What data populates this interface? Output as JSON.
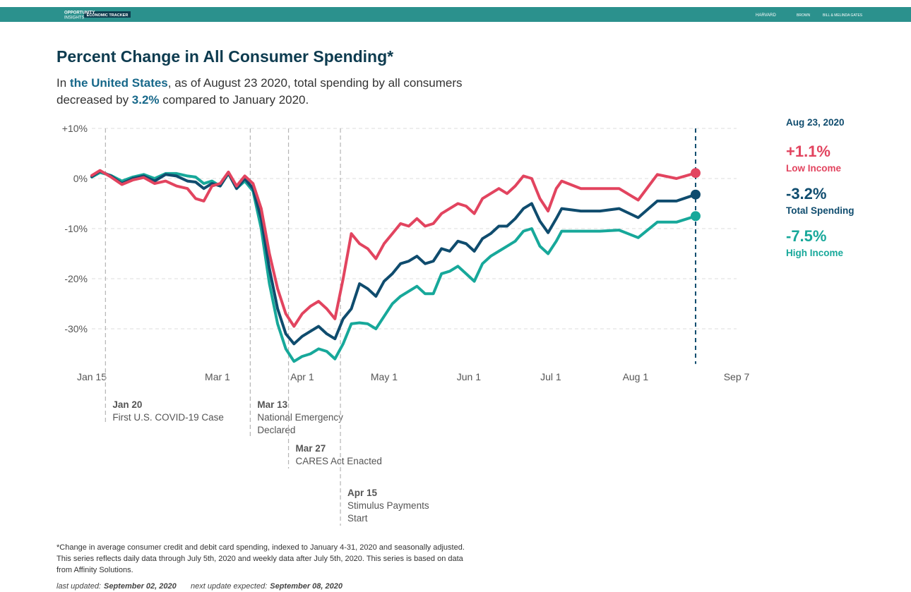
{
  "header": {
    "logo": [
      "OPPORTUNITY",
      "INSIGHTS"
    ],
    "product": "ECONOMIC TRACKER",
    "partners": [
      "HARVARD",
      "BROWN",
      "BILL & MELINDA GATES"
    ]
  },
  "chart_data": {
    "type": "line",
    "title": "Percent Change in All Consumer Spending*",
    "subtitle": [
      [
        {
          "text": "In "
        },
        {
          "text": "the United States",
          "bold": true
        },
        {
          "text": ", as of August 23 2020, total spending by all consumers"
        }
      ],
      [
        {
          "text": "decreased by "
        },
        {
          "text": "3.2%",
          "bold": true
        },
        {
          "text": " compared to January 2020."
        }
      ]
    ],
    "x": [
      "2020-01-15",
      "2020-01-18",
      "2020-01-22",
      "2020-01-26",
      "2020-01-30",
      "2020-02-03",
      "2020-02-07",
      "2020-02-11",
      "2020-02-15",
      "2020-02-19",
      "2020-02-22",
      "2020-02-25",
      "2020-02-28",
      "2020-03-02",
      "2020-03-05",
      "2020-03-08",
      "2020-03-11",
      "2020-03-14",
      "2020-03-17",
      "2020-03-20",
      "2020-03-23",
      "2020-03-26",
      "2020-03-29",
      "2020-04-01",
      "2020-04-04",
      "2020-04-07",
      "2020-04-10",
      "2020-04-13",
      "2020-04-16",
      "2020-04-19",
      "2020-04-22",
      "2020-04-25",
      "2020-04-28",
      "2020-05-01",
      "2020-05-04",
      "2020-05-07",
      "2020-05-10",
      "2020-05-13",
      "2020-05-16",
      "2020-05-19",
      "2020-05-22",
      "2020-05-25",
      "2020-05-28",
      "2020-05-31",
      "2020-06-03",
      "2020-06-06",
      "2020-06-09",
      "2020-06-12",
      "2020-06-15",
      "2020-06-18",
      "2020-06-21",
      "2020-06-24",
      "2020-06-27",
      "2020-06-30",
      "2020-07-03",
      "2020-07-05",
      "2020-07-12",
      "2020-07-19",
      "2020-07-26",
      "2020-08-02",
      "2020-08-09",
      "2020-08-16",
      "2020-08-23"
    ],
    "series": [
      {
        "name": "Low Income",
        "color": "#e2445f",
        "last_label": "+1.1%",
        "values": [
          0.6,
          1.6,
          0.3,
          -1.2,
          -0.3,
          0.2,
          -1,
          -0.5,
          -1.5,
          -2,
          -4,
          -4.5,
          -1.5,
          -1,
          1.3,
          -1.5,
          0.5,
          -1,
          -6,
          -15,
          -22,
          -27,
          -29.5,
          -27,
          -25.5,
          -24.5,
          -26,
          -28,
          -20,
          -11,
          -13,
          -14,
          -16,
          -13,
          -11,
          -9,
          -9.5,
          -8,
          -9.5,
          -9,
          -7,
          -6,
          -5,
          -5.5,
          -7,
          -4,
          -3,
          -2,
          -3,
          -1.5,
          0.5,
          0,
          -4,
          -6.5,
          -2,
          -0.5,
          -2,
          -2,
          -2,
          -4.3,
          0.8,
          0,
          1.1
        ]
      },
      {
        "name": "Total Spending",
        "color": "#0f4c6e",
        "last_label": "-3.2%",
        "values": [
          0.4,
          1.5,
          0.5,
          -1,
          0,
          0.5,
          -0.5,
          0.8,
          0.5,
          -0.5,
          -0.7,
          -2,
          -1,
          -1.5,
          1.1,
          -2,
          0,
          -2,
          -8,
          -18,
          -26,
          -31,
          -33,
          -31.5,
          -30.5,
          -29.5,
          -31,
          -32,
          -28,
          -26,
          -21,
          -22,
          -23.5,
          -20.5,
          -19,
          -17,
          -16.5,
          -15.5,
          -17,
          -16.5,
          -14,
          -14.5,
          -12.5,
          -13,
          -14.5,
          -12,
          -11,
          -9.5,
          -9.5,
          -8,
          -6,
          -5,
          -8.5,
          -10.8,
          -8,
          -6,
          -6.5,
          -6.5,
          -6,
          -7.8,
          -4.5,
          -4.5,
          -3.2
        ]
      },
      {
        "name": "High Income",
        "color": "#17a89a",
        "last_label": "-7.5%",
        "values": [
          0.3,
          1.2,
          0.6,
          -0.5,
          0.3,
          0.8,
          0,
          1,
          1,
          0.5,
          0.3,
          -1,
          -0.5,
          -1.5,
          1,
          -2,
          -0.5,
          -2.5,
          -10,
          -21,
          -29,
          -34,
          -36.5,
          -35.5,
          -35,
          -34,
          -34.5,
          -36,
          -33,
          -29,
          -28.8,
          -29,
          -30,
          -27.5,
          -25,
          -23.5,
          -22.5,
          -21.5,
          -23,
          -23,
          -19,
          -18.5,
          -17.5,
          -19,
          -20.5,
          -17,
          -15.5,
          -14.5,
          -13.5,
          -12.5,
          -10.5,
          -10,
          -13.5,
          -15,
          -12.5,
          -10.5,
          -10.5,
          -10.5,
          -10.3,
          -11.8,
          -8.7,
          -8.7,
          -7.5
        ]
      }
    ],
    "xlim": [
      "2020-01-15",
      "2020-09-07"
    ],
    "xticks": [
      {
        "value": "2020-01-15",
        "label": "Jan 15"
      },
      {
        "value": "2020-03-01",
        "label": "Mar 1"
      },
      {
        "value": "2020-04-01",
        "label": "Apr 1"
      },
      {
        "value": "2020-05-01",
        "label": "May 1"
      },
      {
        "value": "2020-06-01",
        "label": "Jun 1"
      },
      {
        "value": "2020-07-01",
        "label": "Jul 1"
      },
      {
        "value": "2020-08-01",
        "label": "Aug 1"
      },
      {
        "value": "2020-09-07",
        "label": "Sep 7"
      }
    ],
    "ylim": [
      -37,
      10
    ],
    "yticks": [
      {
        "value": 10,
        "label": "+10%"
      },
      {
        "value": 0,
        "label": "0%"
      },
      {
        "value": -10,
        "label": "-10%"
      },
      {
        "value": -20,
        "label": "-20%"
      },
      {
        "value": -30,
        "label": "-30%"
      }
    ],
    "grid": true,
    "marker": {
      "date": "2020-08-23",
      "label": "Aug 23, 2020",
      "color": "#0f4c6e"
    },
    "annotations": [
      {
        "date": "2020-01-20",
        "label": "Jan 20",
        "lines": [
          "First U.S. COVID-19 Case"
        ]
      },
      {
        "date": "2020-03-13",
        "label": "Mar 13",
        "lines": [
          "National Emergency",
          "Declared"
        ]
      },
      {
        "date": "2020-03-27",
        "label": "Mar 27",
        "lines": [
          "CARES Act Enacted"
        ]
      },
      {
        "date": "2020-04-15",
        "label": "Apr 15",
        "lines": [
          "Stimulus Payments",
          "Start"
        ]
      }
    ],
    "footnote": [
      "*Change in average consumer credit and debit card spending, indexed to January 4-31, 2020 and seasonally adjusted.",
      "This series reflects daily data through July 5th, 2020 and weekly data after July 5th, 2020. This series is based on data",
      "from Affinity Solutions."
    ],
    "updated": [
      {
        "label": "last updated:",
        "value": "September 02, 2020"
      },
      {
        "label": "next update expected:",
        "value": "September 08, 2020"
      }
    ]
  }
}
